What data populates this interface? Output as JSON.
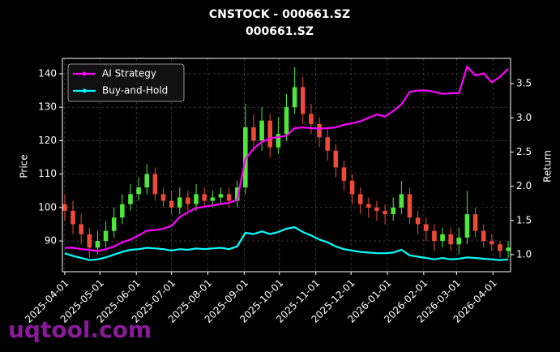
{
  "chart_data": {
    "type": "candlestick",
    "title": "CNSTOCK - 000661.SZ",
    "subtitle": "000661.SZ",
    "ylabel": "Price",
    "y2label": "Return",
    "watermark": "uqtool.com",
    "x": [
      "2025-04-01",
      "2025-04-08",
      "2025-04-15",
      "2025-04-22",
      "2025-04-29",
      "2025-05-06",
      "2025-05-13",
      "2025-05-20",
      "2025-05-27",
      "2025-06-03",
      "2025-06-10",
      "2025-06-17",
      "2025-06-24",
      "2025-07-01",
      "2025-07-08",
      "2025-07-15",
      "2025-07-22",
      "2025-07-29",
      "2025-08-05",
      "2025-08-12",
      "2025-08-19",
      "2025-08-26",
      "2025-09-02",
      "2025-09-09",
      "2025-09-16",
      "2025-09-23",
      "2025-09-30",
      "2025-10-07",
      "2025-10-14",
      "2025-10-21",
      "2025-10-28",
      "2025-11-04",
      "2025-11-11",
      "2025-11-18",
      "2025-11-25",
      "2025-12-02",
      "2025-12-09",
      "2025-12-16",
      "2025-12-23",
      "2025-12-30",
      "2026-01-06",
      "2026-01-13",
      "2026-01-20",
      "2026-01-27",
      "2026-02-03",
      "2026-02-10",
      "2026-02-17",
      "2026-02-24",
      "2026-03-03",
      "2026-03-10",
      "2026-03-17",
      "2026-03-24",
      "2026-03-31",
      "2026-04-07",
      "2026-04-14"
    ],
    "open": [
      101,
      99,
      95,
      92,
      88,
      90,
      93,
      97,
      101,
      104,
      106,
      110,
      104,
      102,
      100,
      103,
      101,
      104,
      102,
      103,
      104,
      102,
      106,
      124,
      120,
      126,
      118,
      122,
      130,
      136,
      128,
      125,
      121,
      117,
      112,
      108,
      104,
      101,
      100,
      99,
      98,
      100,
      104,
      97,
      95,
      93,
      90,
      92,
      89,
      91,
      98,
      93,
      90,
      89,
      87
    ],
    "high": [
      104,
      102,
      98,
      94,
      93,
      96,
      100,
      104,
      107,
      109,
      113,
      112,
      106,
      105,
      106,
      105,
      107,
      106,
      105,
      106,
      106,
      108,
      131,
      128,
      130,
      128,
      127,
      134,
      142,
      139,
      131,
      127,
      124,
      119,
      114,
      110,
      106,
      103,
      102,
      101,
      103,
      108,
      106,
      99,
      97,
      95,
      94,
      94,
      94,
      105,
      100,
      95,
      92,
      90,
      90
    ],
    "low": [
      96,
      92,
      89,
      85,
      86,
      88,
      91,
      95,
      99,
      102,
      104,
      102,
      100,
      98,
      98,
      99,
      99,
      100,
      100,
      101,
      100,
      100,
      104,
      117,
      117,
      115,
      116,
      120,
      128,
      125,
      122,
      118,
      114,
      109,
      105,
      101,
      98,
      97,
      96,
      95,
      96,
      98,
      95,
      92,
      90,
      87,
      88,
      87,
      86,
      89,
      91,
      88,
      87,
      85,
      85
    ],
    "close": [
      99,
      95,
      92,
      88,
      90,
      93,
      97,
      101,
      104,
      106,
      110,
      104,
      102,
      100,
      103,
      101,
      104,
      102,
      103,
      104,
      102,
      106,
      124,
      120,
      126,
      118,
      122,
      130,
      136,
      128,
      125,
      121,
      117,
      112,
      108,
      104,
      101,
      100,
      99,
      98,
      100,
      104,
      97,
      95,
      93,
      90,
      92,
      89,
      91,
      98,
      93,
      90,
      89,
      87,
      88
    ],
    "up_color": "#4ee83c",
    "down_color": "#ee4a3a",
    "series": [
      {
        "name": "AI Strategy",
        "color": "#ff00ff",
        "axis": "y2",
        "values": [
          1.1,
          1.1,
          1.08,
          1.07,
          1.05,
          1.08,
          1.12,
          1.18,
          1.22,
          1.28,
          1.35,
          1.36,
          1.38,
          1.42,
          1.55,
          1.62,
          1.68,
          1.7,
          1.72,
          1.74,
          1.76,
          1.8,
          2.4,
          2.55,
          2.65,
          2.7,
          2.72,
          2.74,
          2.85,
          2.86,
          2.85,
          2.84,
          2.85,
          2.86,
          2.9,
          2.92,
          2.95,
          3.0,
          3.05,
          3.02,
          3.1,
          3.2,
          3.38,
          3.4,
          3.4,
          3.38,
          3.35,
          3.36,
          3.36,
          3.75,
          3.62,
          3.65,
          3.52,
          3.6,
          3.72
        ]
      },
      {
        "name": "Buy-and-Hold",
        "color": "#00ffff",
        "axis": "y2",
        "values": [
          1.02,
          0.98,
          0.95,
          0.92,
          0.93,
          0.96,
          1.0,
          1.04,
          1.07,
          1.08,
          1.1,
          1.09,
          1.08,
          1.06,
          1.08,
          1.07,
          1.09,
          1.08,
          1.09,
          1.1,
          1.08,
          1.12,
          1.32,
          1.3,
          1.34,
          1.3,
          1.33,
          1.38,
          1.4,
          1.33,
          1.28,
          1.22,
          1.18,
          1.12,
          1.08,
          1.06,
          1.04,
          1.03,
          1.02,
          1.02,
          1.03,
          1.07,
          0.99,
          0.97,
          0.95,
          0.93,
          0.95,
          0.93,
          0.94,
          0.96,
          0.95,
          0.94,
          0.93,
          0.92,
          0.93
        ]
      }
    ],
    "xlim": [
      "2025-03-30",
      "2026-04-16"
    ],
    "xticks": [
      "2025-04-01",
      "2025-05-01",
      "2025-06-01",
      "2025-07-01",
      "2025-08-01",
      "2025-09-01",
      "2025-10-01",
      "2025-11-01",
      "2025-12-01",
      "2026-01-01",
      "2026-02-01",
      "2026-03-01",
      "2026-04-01"
    ],
    "ylim": [
      80.8,
      144.6
    ],
    "yticks": [
      90,
      100,
      110,
      120,
      130,
      140
    ],
    "y2lim": [
      0.75,
      3.87
    ],
    "y2ticks": [
      {
        "value": 1,
        "label": "1.0"
      },
      {
        "value": 1.5,
        "label": "1.5"
      },
      {
        "value": 2,
        "label": "2.0"
      },
      {
        "value": 2.5,
        "label": "2.5"
      },
      {
        "value": 3,
        "label": "3.0"
      },
      {
        "value": 3.5,
        "label": "3.5"
      }
    ],
    "grid": true,
    "legend": "upper left"
  }
}
